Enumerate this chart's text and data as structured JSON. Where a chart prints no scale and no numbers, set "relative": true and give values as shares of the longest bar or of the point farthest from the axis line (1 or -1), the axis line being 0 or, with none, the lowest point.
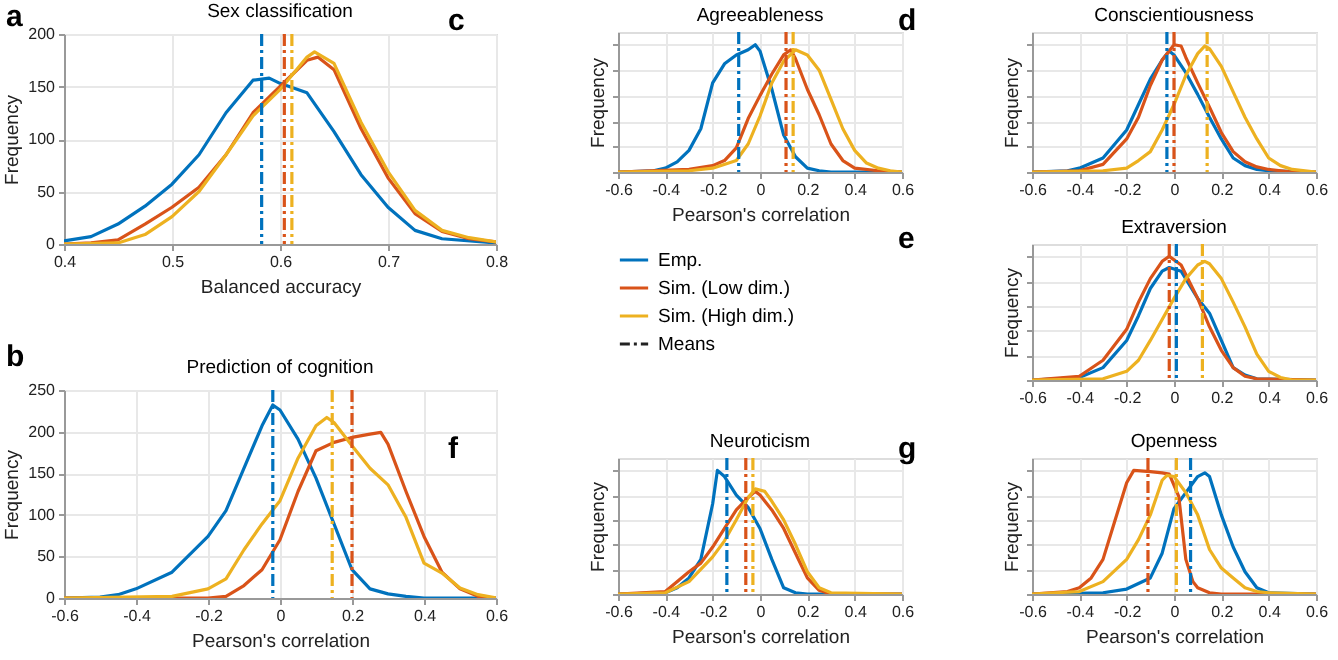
{
  "chart_data": [
    {
      "type": "line",
      "title": "Sex classification",
      "xlabel": "Balanced accuracy",
      "ylabel": "Frequency",
      "annotations": [
        "a"
      ],
      "xlim": [
        0.4,
        0.8
      ],
      "xticks": [
        0.4,
        0.5,
        0.6,
        0.7,
        0.8
      ],
      "ylim": [
        0,
        200
      ],
      "yticks": [
        0,
        50,
        100,
        150,
        200
      ],
      "grid": true,
      "series": [
        {
          "color": "#0072bd",
          "x": [
            0.4,
            0.425,
            0.45,
            0.475,
            0.5,
            0.525,
            0.55,
            0.575,
            0.59,
            0.6,
            0.625,
            0.65,
            0.675,
            0.7,
            0.725,
            0.75,
            0.8
          ],
          "values": [
            3,
            7,
            19,
            36,
            57,
            85,
            125,
            156,
            158,
            153,
            144,
            107,
            66,
            35,
            13,
            5,
            1
          ]
        },
        {
          "color": "#d95319",
          "x": [
            0.4,
            0.425,
            0.45,
            0.475,
            0.5,
            0.525,
            0.55,
            0.575,
            0.6,
            0.625,
            0.635,
            0.65,
            0.675,
            0.7,
            0.725,
            0.75,
            0.775,
            0.8
          ],
          "values": [
            0,
            1,
            4,
            19,
            35,
            54,
            85,
            125,
            150,
            175,
            178,
            166,
            110,
            63,
            29,
            12,
            5,
            2
          ]
        },
        {
          "color": "#edb120",
          "x": [
            0.4,
            0.45,
            0.475,
            0.5,
            0.525,
            0.55,
            0.575,
            0.6,
            0.625,
            0.632,
            0.65,
            0.675,
            0.7,
            0.725,
            0.75,
            0.775,
            0.8
          ],
          "values": [
            0,
            1,
            9,
            26,
            50,
            85,
            122,
            147,
            178,
            183,
            172,
            116,
            69,
            32,
            13,
            6,
            2
          ]
        }
      ],
      "ref_lines": [
        {
          "axis": "x",
          "value": 0.583,
          "color": "#0072bd",
          "line_style": "dashed"
        },
        {
          "axis": "x",
          "value": 0.604,
          "color": "#d95319",
          "line_style": "dashed"
        },
        {
          "axis": "x",
          "value": 0.611,
          "color": "#edb120",
          "line_style": "dashed"
        }
      ]
    },
    {
      "type": "line",
      "title": "Prediction of cognition",
      "xlabel": "Pearson's correlation",
      "ylabel": "Frequency",
      "annotations": [
        "b"
      ],
      "xlim": [
        -0.6,
        0.6
      ],
      "xticks": [
        -0.6,
        -0.4,
        -0.2,
        0,
        0.2,
        0.4,
        0.6
      ],
      "ylim": [
        0,
        250
      ],
      "yticks": [
        0,
        50,
        100,
        150,
        200,
        250
      ],
      "grid": true,
      "series": [
        {
          "color": "#0072bd",
          "x": [
            -0.6,
            -0.5,
            -0.45,
            -0.4,
            -0.3,
            -0.2,
            -0.15,
            -0.1,
            -0.05,
            -0.02,
            0,
            0.05,
            0.1,
            0.15,
            0.2,
            0.25,
            0.3,
            0.35,
            0.4,
            0.6
          ],
          "values": [
            0,
            1,
            4,
            11,
            31,
            74,
            105,
            156,
            207,
            232,
            226,
            191,
            144,
            89,
            34,
            11,
            5,
            2,
            0,
            0
          ]
        },
        {
          "color": "#d95319",
          "x": [
            -0.6,
            -0.2,
            -0.15,
            -0.1,
            -0.05,
            0,
            0.05,
            0.1,
            0.15,
            0.2,
            0.25,
            0.28,
            0.3,
            0.35,
            0.4,
            0.45,
            0.5,
            0.55,
            0.6
          ],
          "values": [
            0,
            0,
            2,
            15,
            34,
            70,
            128,
            177,
            187,
            193,
            197,
            199,
            185,
            128,
            74,
            31,
            11,
            2,
            0
          ]
        },
        {
          "color": "#edb120",
          "x": [
            -0.6,
            -0.3,
            -0.2,
            -0.15,
            -0.1,
            -0.05,
            0,
            0.05,
            0.1,
            0.13,
            0.15,
            0.2,
            0.25,
            0.3,
            0.35,
            0.4,
            0.45,
            0.5,
            0.55,
            0.6
          ],
          "values": [
            0,
            2,
            11,
            23,
            58,
            89,
            117,
            168,
            207,
            217,
            211,
            183,
            156,
            136,
            97,
            42,
            30,
            12,
            4,
            0
          ]
        }
      ],
      "ref_lines": [
        {
          "axis": "x",
          "value": -0.02,
          "color": "#0072bd",
          "line_style": "dashed"
        },
        {
          "axis": "x",
          "value": 0.2,
          "color": "#d95319",
          "line_style": "dashed"
        },
        {
          "axis": "x",
          "value": 0.145,
          "color": "#edb120",
          "line_style": "dashed"
        }
      ]
    },
    {
      "type": "line",
      "title": "Agreeableness",
      "xlabel": "Pearson's correlation",
      "ylabel": "Frequency",
      "annotations": [
        "c",
        "Means"
      ],
      "relative": true,
      "xlim": [
        -0.6,
        0.6
      ],
      "xticks": [
        -0.6,
        -0.4,
        -0.2,
        0,
        0.2,
        0.4,
        0.6
      ],
      "grid": true,
      "legend": "bottom",
      "series": [
        {
          "name": "Emp.",
          "color": "#0072bd",
          "x": [
            -0.6,
            -0.45,
            -0.4,
            -0.35,
            -0.3,
            -0.25,
            -0.2,
            -0.15,
            -0.1,
            -0.05,
            -0.02,
            0,
            0.05,
            0.1,
            0.15,
            0.2,
            0.25,
            0.3,
            0.6
          ],
          "values": [
            0,
            0.01,
            0.03,
            0.08,
            0.17,
            0.34,
            0.7,
            0.85,
            0.92,
            0.96,
            1,
            0.95,
            0.65,
            0.29,
            0.12,
            0.03,
            0.01,
            0,
            0
          ]
        },
        {
          "name": "Sim. (Low dim.)",
          "color": "#d95319",
          "x": [
            -0.6,
            -0.3,
            -0.2,
            -0.15,
            -0.1,
            -0.05,
            0,
            0.05,
            0.1,
            0.13,
            0.15,
            0.2,
            0.25,
            0.3,
            0.35,
            0.4,
            0.5,
            0.6
          ],
          "values": [
            0,
            0.02,
            0.05,
            0.09,
            0.19,
            0.42,
            0.6,
            0.77,
            0.92,
            0.96,
            0.89,
            0.65,
            0.45,
            0.22,
            0.09,
            0.03,
            0.01,
            0
          ]
        },
        {
          "name": "Sim. (High dim.)",
          "color": "#edb120",
          "x": [
            -0.6,
            -0.3,
            -0.2,
            -0.1,
            -0.05,
            0,
            0.05,
            0.1,
            0.15,
            0.2,
            0.25,
            0.3,
            0.35,
            0.4,
            0.45,
            0.5,
            0.55,
            0.6
          ],
          "values": [
            0,
            0.01,
            0.03,
            0.09,
            0.22,
            0.44,
            0.7,
            0.87,
            0.96,
            0.92,
            0.8,
            0.57,
            0.34,
            0.17,
            0.07,
            0.03,
            0.01,
            0
          ]
        }
      ],
      "ref_lines": [
        {
          "axis": "x",
          "value": -0.09,
          "color": "#0072bd",
          "line_style": "dashed"
        },
        {
          "axis": "x",
          "value": 0.11,
          "color": "#d95319",
          "line_style": "dashed"
        },
        {
          "axis": "x",
          "value": 0.14,
          "color": "#edb120",
          "line_style": "dashed"
        }
      ]
    },
    {
      "type": "line",
      "title": "Conscientiousness",
      "ylabel": "Frequency",
      "annotations": [
        "d"
      ],
      "relative": true,
      "xlim": [
        -0.6,
        0.6
      ],
      "xticks": [
        -0.6,
        -0.4,
        -0.2,
        0,
        0.2,
        0.4,
        0.6
      ],
      "grid": true,
      "series": [
        {
          "color": "#0072bd",
          "x": [
            -0.6,
            -0.45,
            -0.4,
            -0.3,
            -0.2,
            -0.15,
            -0.1,
            -0.05,
            -0.02,
            0,
            0.05,
            0.1,
            0.15,
            0.2,
            0.25,
            0.3,
            0.35,
            0.4,
            0.6
          ],
          "values": [
            0,
            0.01,
            0.03,
            0.11,
            0.33,
            0.53,
            0.73,
            0.88,
            0.95,
            0.92,
            0.78,
            0.61,
            0.43,
            0.26,
            0.11,
            0.05,
            0.02,
            0.01,
            0
          ]
        },
        {
          "color": "#d95319",
          "x": [
            -0.6,
            -0.4,
            -0.3,
            -0.2,
            -0.15,
            -0.1,
            -0.05,
            0,
            0.03,
            0.05,
            0.1,
            0.15,
            0.2,
            0.25,
            0.3,
            0.35,
            0.4,
            0.5,
            0.6
          ],
          "values": [
            0,
            0.01,
            0.06,
            0.26,
            0.43,
            0.68,
            0.88,
            1,
            0.99,
            0.9,
            0.7,
            0.51,
            0.31,
            0.16,
            0.08,
            0.04,
            0.02,
            0,
            0
          ]
        },
        {
          "color": "#edb120",
          "x": [
            -0.6,
            -0.3,
            -0.2,
            -0.15,
            -0.1,
            -0.05,
            0,
            0.05,
            0.1,
            0.13,
            0.15,
            0.2,
            0.25,
            0.3,
            0.35,
            0.4,
            0.45,
            0.5,
            0.6
          ],
          "values": [
            0,
            0.01,
            0.03,
            0.09,
            0.16,
            0.33,
            0.53,
            0.76,
            0.93,
            0.99,
            0.97,
            0.83,
            0.63,
            0.43,
            0.26,
            0.11,
            0.05,
            0.02,
            0
          ]
        }
      ],
      "ref_lines": [
        {
          "axis": "x",
          "value": -0.03,
          "color": "#0072bd",
          "line_style": "dashed"
        },
        {
          "axis": "x",
          "value": 0,
          "color": "#d95319",
          "line_style": "dashed"
        },
        {
          "axis": "x",
          "value": 0.14,
          "color": "#edb120",
          "line_style": "dashed"
        }
      ]
    },
    {
      "type": "line",
      "title": "Extraversion",
      "ylabel": "Frequency",
      "annotations": [
        "e"
      ],
      "relative": true,
      "xlim": [
        -0.6,
        0.6
      ],
      "xticks": [
        -0.6,
        -0.4,
        -0.2,
        0,
        0.2,
        0.4,
        0.6
      ],
      "grid": true,
      "series": [
        {
          "color": "#0072bd",
          "x": [
            -0.6,
            -0.4,
            -0.3,
            -0.2,
            -0.15,
            -0.1,
            -0.05,
            -0.02,
            0.03,
            0.1,
            0.15,
            0.2,
            0.25,
            0.3,
            0.35,
            0.6
          ],
          "values": [
            0,
            0.02,
            0.1,
            0.32,
            0.52,
            0.74,
            0.88,
            0.91,
            0.88,
            0.66,
            0.54,
            0.32,
            0.1,
            0.04,
            0.01,
            0
          ]
        },
        {
          "color": "#d95319",
          "x": [
            -0.6,
            -0.4,
            -0.3,
            -0.2,
            -0.15,
            -0.1,
            -0.05,
            -0.02,
            0.03,
            0.1,
            0.15,
            0.2,
            0.25,
            0.3,
            0.35,
            0.6
          ],
          "values": [
            0,
            0.03,
            0.16,
            0.41,
            0.63,
            0.82,
            0.96,
            1,
            0.93,
            0.66,
            0.43,
            0.24,
            0.1,
            0.03,
            0.01,
            0
          ]
        },
        {
          "color": "#edb120",
          "x": [
            -0.6,
            -0.3,
            -0.2,
            -0.15,
            -0.1,
            -0.05,
            0,
            0.05,
            0.1,
            0.13,
            0.15,
            0.2,
            0.25,
            0.3,
            0.35,
            0.4,
            0.45,
            0.5,
            0.6
          ],
          "values": [
            0,
            0.01,
            0.07,
            0.16,
            0.32,
            0.49,
            0.66,
            0.82,
            0.93,
            0.96,
            0.94,
            0.82,
            0.63,
            0.43,
            0.21,
            0.07,
            0.02,
            0,
            0
          ]
        }
      ],
      "ref_lines": [
        {
          "axis": "x",
          "value": 0.01,
          "color": "#0072bd",
          "line_style": "dashed"
        },
        {
          "axis": "x",
          "value": -0.02,
          "color": "#d95319",
          "line_style": "dashed"
        },
        {
          "axis": "x",
          "value": 0.12,
          "color": "#edb120",
          "line_style": "dashed"
        }
      ]
    },
    {
      "type": "line",
      "title": "Neuroticism",
      "xlabel": "Pearson's correlation",
      "ylabel": "Frequency",
      "annotations": [
        "f"
      ],
      "relative": true,
      "xlim": [
        -0.6,
        0.6
      ],
      "xticks": [
        -0.6,
        -0.4,
        -0.2,
        0,
        0.2,
        0.4,
        0.6
      ],
      "grid": true,
      "series": [
        {
          "color": "#0072bd",
          "x": [
            -0.6,
            -0.4,
            -0.35,
            -0.3,
            -0.25,
            -0.2,
            -0.18,
            -0.15,
            -0.1,
            -0.05,
            0,
            0.05,
            0.1,
            0.15,
            0.2,
            0.6
          ],
          "values": [
            0,
            0.01,
            0.05,
            0.13,
            0.28,
            0.73,
            1,
            0.95,
            0.8,
            0.7,
            0.53,
            0.28,
            0.05,
            0.01,
            0,
            0
          ]
        },
        {
          "color": "#d95319",
          "x": [
            -0.6,
            -0.4,
            -0.3,
            -0.25,
            -0.2,
            -0.15,
            -0.1,
            -0.05,
            -0.02,
            0,
            0.05,
            0.1,
            0.15,
            0.2,
            0.25,
            0.3,
            0.6
          ],
          "values": [
            0,
            0.02,
            0.18,
            0.25,
            0.38,
            0.53,
            0.68,
            0.78,
            0.83,
            0.8,
            0.68,
            0.53,
            0.33,
            0.13,
            0.03,
            0,
            0
          ]
        },
        {
          "color": "#edb120",
          "x": [
            -0.6,
            -0.4,
            -0.3,
            -0.2,
            -0.15,
            -0.1,
            -0.05,
            -0.02,
            0.02,
            0.05,
            0.1,
            0.15,
            0.2,
            0.25,
            0.3,
            0.6
          ],
          "values": [
            0,
            0.01,
            0.1,
            0.3,
            0.43,
            0.6,
            0.78,
            0.85,
            0.83,
            0.75,
            0.6,
            0.4,
            0.18,
            0.05,
            0.01,
            0
          ]
        }
      ],
      "ref_lines": [
        {
          "axis": "x",
          "value": -0.14,
          "color": "#0072bd",
          "line_style": "dashed"
        },
        {
          "axis": "x",
          "value": -0.06,
          "color": "#d95319",
          "line_style": "dashed"
        },
        {
          "axis": "x",
          "value": -0.03,
          "color": "#edb120",
          "line_style": "dashed"
        }
      ]
    },
    {
      "type": "line",
      "title": "Openness",
      "xlabel": "Pearson's correlation",
      "ylabel": "Frequency",
      "annotations": [
        "g"
      ],
      "relative": true,
      "xlim": [
        -0.6,
        0.6
      ],
      "xticks": [
        -0.6,
        -0.4,
        -0.2,
        0,
        0.2,
        0.4,
        0.6
      ],
      "grid": true,
      "series": [
        {
          "color": "#0072bd",
          "x": [
            -0.6,
            -0.3,
            -0.2,
            -0.1,
            -0.05,
            0,
            0.05,
            0.1,
            0.13,
            0.15,
            0.2,
            0.25,
            0.3,
            0.35,
            0.4,
            0.6
          ],
          "values": [
            0,
            0.01,
            0.04,
            0.13,
            0.33,
            0.69,
            0.82,
            0.95,
            0.98,
            0.95,
            0.64,
            0.38,
            0.18,
            0.05,
            0.01,
            0
          ]
        },
        {
          "color": "#d95319",
          "x": [
            -0.6,
            -0.45,
            -0.4,
            -0.35,
            -0.3,
            -0.25,
            -0.2,
            -0.17,
            -0.1,
            -0.05,
            -0.02,
            0.02,
            0.05,
            0.08,
            0.1,
            0.15,
            0.2,
            0.6
          ],
          "values": [
            0,
            0.02,
            0.05,
            0.13,
            0.28,
            0.59,
            0.9,
            1,
            0.99,
            0.98,
            0.97,
            0.79,
            0.28,
            0.1,
            0.05,
            0.01,
            0,
            0
          ]
        },
        {
          "color": "#edb120",
          "x": [
            -0.6,
            -0.4,
            -0.3,
            -0.2,
            -0.15,
            -0.1,
            -0.05,
            -0.03,
            0,
            0.05,
            0.1,
            0.15,
            0.2,
            0.25,
            0.3,
            0.35,
            0.4,
            0.6
          ],
          "values": [
            0,
            0.02,
            0.1,
            0.28,
            0.44,
            0.64,
            0.92,
            0.96,
            0.95,
            0.82,
            0.64,
            0.36,
            0.21,
            0.13,
            0.05,
            0.02,
            0.01,
            0
          ]
        }
      ],
      "ref_lines": [
        {
          "axis": "x",
          "value": 0.07,
          "color": "#0072bd",
          "line_style": "dashed"
        },
        {
          "axis": "x",
          "value": -0.11,
          "color": "#d95319",
          "line_style": "dashed"
        },
        {
          "axis": "x",
          "value": 0.01,
          "color": "#edb120",
          "line_style": "dashed"
        }
      ]
    }
  ]
}
